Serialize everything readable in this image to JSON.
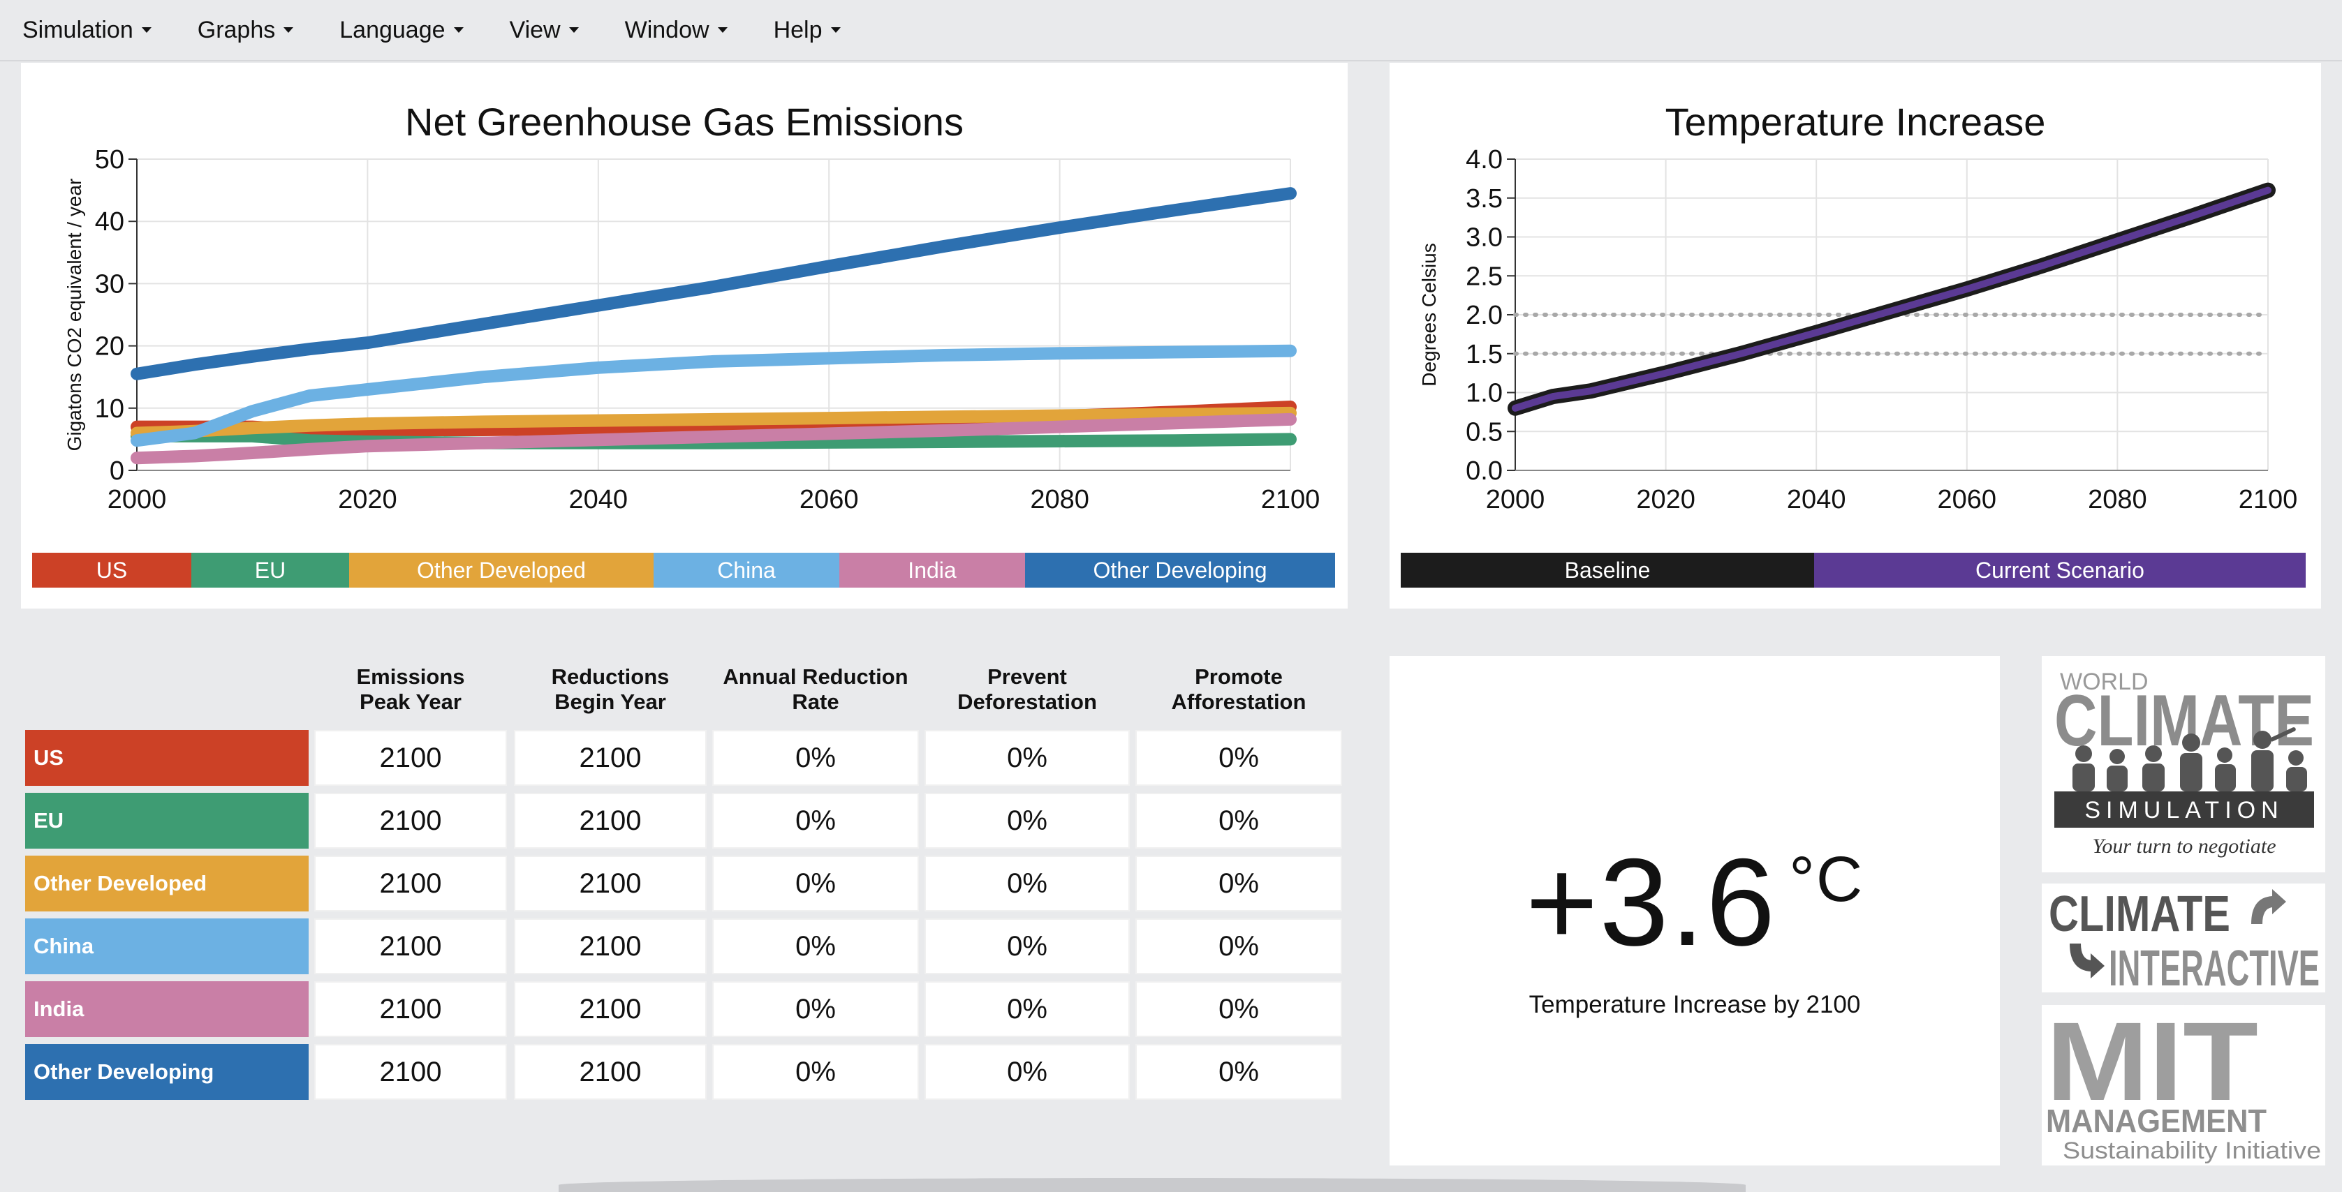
{
  "menu": [
    {
      "label": "Simulation"
    },
    {
      "label": "Graphs"
    },
    {
      "label": "Language"
    },
    {
      "label": "View"
    },
    {
      "label": "Window"
    },
    {
      "label": "Help"
    }
  ],
  "colors": {
    "us": "#cc4126",
    "eu": "#3e9c73",
    "other_developed": "#e2a43a",
    "china": "#6cb1e3",
    "india": "#c97fa6",
    "other_developing": "#2d70b0",
    "baseline": "#1c1c1c",
    "current_scenario": "#5b3a94"
  },
  "emissions_chart": {
    "title": "Net Greenhouse Gas Emissions",
    "ylabel": "Gigatons CO2 equivalent / year",
    "xticks": [
      "2000",
      "2020",
      "2040",
      "2060",
      "2080",
      "2100"
    ],
    "yticks": [
      "0",
      "10",
      "20",
      "30",
      "40",
      "50"
    ],
    "legend": [
      "US",
      "EU",
      "Other Developed",
      "China",
      "India",
      "Other Developing"
    ]
  },
  "temp_chart": {
    "title": "Temperature Increase",
    "ylabel": "Degrees Celsius",
    "xticks": [
      "2000",
      "2020",
      "2040",
      "2060",
      "2080",
      "2100"
    ],
    "yticks": [
      "0.0",
      "0.5",
      "1.0",
      "1.5",
      "2.0",
      "2.5",
      "3.0",
      "3.5",
      "4.0"
    ],
    "legend": [
      "Baseline",
      "Current Scenario"
    ]
  },
  "chart_data": [
    {
      "type": "line",
      "title": "Net Greenhouse Gas Emissions",
      "xlabel": "",
      "ylabel": "Gigatons CO2 equivalent / year",
      "xlim": [
        2000,
        2100
      ],
      "ylim": [
        0,
        50
      ],
      "grid": true,
      "legend_position": "bottom",
      "x": [
        2000,
        2005,
        2010,
        2015,
        2020,
        2030,
        2040,
        2050,
        2060,
        2070,
        2080,
        2090,
        2100
      ],
      "series": [
        {
          "name": "US",
          "values": [
            7.0,
            7.0,
            7.0,
            6.5,
            6.5,
            6.5,
            6.7,
            7.0,
            7.5,
            8.0,
            8.7,
            9.4,
            10.2
          ]
        },
        {
          "name": "EU",
          "values": [
            5.5,
            5.5,
            5.5,
            4.8,
            4.6,
            4.4,
            4.4,
            4.4,
            4.5,
            4.6,
            4.7,
            4.8,
            5.0
          ]
        },
        {
          "name": "Other Developed",
          "values": [
            6.0,
            6.3,
            6.8,
            7.2,
            7.5,
            7.8,
            8.0,
            8.2,
            8.4,
            8.6,
            8.8,
            9.0,
            9.2
          ]
        },
        {
          "name": "China",
          "values": [
            4.8,
            6.0,
            9.5,
            12.0,
            13.0,
            15.0,
            16.5,
            17.5,
            18.0,
            18.5,
            18.8,
            19.0,
            19.2
          ]
        },
        {
          "name": "India",
          "values": [
            2.0,
            2.3,
            2.8,
            3.4,
            3.9,
            4.4,
            4.9,
            5.4,
            5.9,
            6.4,
            7.0,
            7.6,
            8.2
          ]
        },
        {
          "name": "Other Developing",
          "values": [
            15.5,
            17.0,
            18.3,
            19.5,
            20.5,
            23.5,
            26.5,
            29.5,
            32.8,
            36.0,
            39.0,
            41.8,
            44.5
          ]
        }
      ]
    },
    {
      "type": "line",
      "title": "Temperature Increase",
      "xlabel": "",
      "ylabel": "Degrees Celsius",
      "xlim": [
        2000,
        2100
      ],
      "ylim": [
        0,
        4
      ],
      "grid": true,
      "reference_lines": [
        1.5,
        2.0
      ],
      "legend_position": "bottom",
      "x": [
        2000,
        2005,
        2010,
        2020,
        2030,
        2040,
        2050,
        2060,
        2070,
        2080,
        2090,
        2100
      ],
      "series": [
        {
          "name": "Baseline",
          "values": [
            0.8,
            0.95,
            1.02,
            1.25,
            1.5,
            1.77,
            2.05,
            2.33,
            2.63,
            2.95,
            3.27,
            3.6
          ]
        },
        {
          "name": "Current Scenario",
          "values": [
            0.8,
            0.95,
            1.02,
            1.25,
            1.5,
            1.77,
            2.05,
            2.33,
            2.63,
            2.95,
            3.27,
            3.6
          ]
        }
      ]
    }
  ],
  "table": {
    "headers": [
      "Emissions\nPeak Year",
      "Reductions\nBegin Year",
      "Annual Reduction\nRate",
      "Prevent\nDeforestation",
      "Promote\nAfforestation"
    ],
    "rows": [
      {
        "region": "US",
        "values": [
          "2100",
          "2100",
          "0%",
          "0%",
          "0%"
        ]
      },
      {
        "region": "EU",
        "values": [
          "2100",
          "2100",
          "0%",
          "0%",
          "0%"
        ]
      },
      {
        "region": "Other Developed",
        "values": [
          "2100",
          "2100",
          "0%",
          "0%",
          "0%"
        ]
      },
      {
        "region": "China",
        "values": [
          "2100",
          "2100",
          "0%",
          "0%",
          "0%"
        ]
      },
      {
        "region": "India",
        "values": [
          "2100",
          "2100",
          "0%",
          "0%",
          "0%"
        ]
      },
      {
        "region": "Other Developing",
        "values": [
          "2100",
          "2100",
          "0%",
          "0%",
          "0%"
        ]
      }
    ]
  },
  "result": {
    "value": "+3.6",
    "unit": "°C",
    "caption": "Temperature Increase by 2100"
  },
  "logos": {
    "wcs_line1": "WORLD",
    "wcs_line2": "CLIMATE",
    "wcs_line3": "SIMULATION",
    "wcs_tagline": "Your turn to negotiate",
    "ci_line1": "CLIMATE",
    "ci_line2": "INTERACTIVE",
    "mit_line1": "MIT",
    "mit_line2": "MANAGEMENT",
    "mit_line3": "Sustainability Initiative"
  }
}
